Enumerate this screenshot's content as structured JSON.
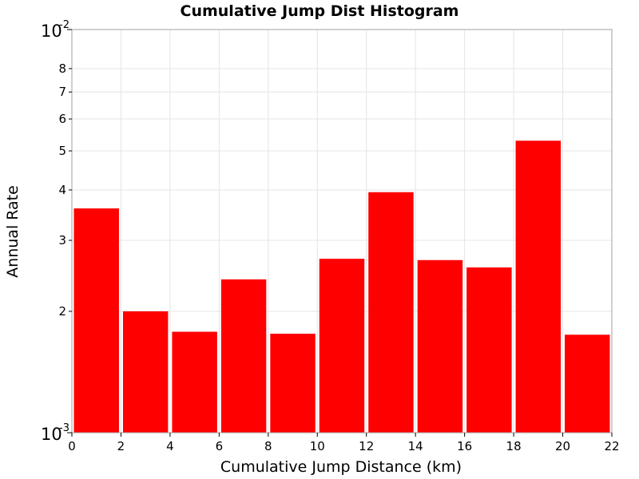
{
  "chart_data": {
    "type": "bar",
    "title": "Cumulative Jump Dist Histogram",
    "xlabel": "Cumulative Jump Distance (km)",
    "ylabel": "Annual Rate",
    "xlim": [
      0,
      22
    ],
    "ylim": [
      0.001,
      0.01
    ],
    "yscale": "log",
    "grid": true,
    "bar_color": "#ff0000",
    "bin_width": 2,
    "x_ticks": [
      0,
      2,
      4,
      6,
      8,
      10,
      12,
      14,
      16,
      18,
      20,
      22
    ],
    "y_major_ticks": [
      {
        "value": 0.001,
        "base": "10",
        "exp": "-3"
      },
      {
        "value": 0.01,
        "base": "10",
        "exp": "-2"
      }
    ],
    "y_minor_ticks": [
      {
        "value": 0.002,
        "label": "2"
      },
      {
        "value": 0.003,
        "label": "3"
      },
      {
        "value": 0.004,
        "label": "4"
      },
      {
        "value": 0.005,
        "label": "5"
      },
      {
        "value": 0.006,
        "label": "6"
      },
      {
        "value": 0.007,
        "label": "7"
      },
      {
        "value": 0.008,
        "label": "8"
      }
    ],
    "bins": [
      {
        "x": 1,
        "value": 0.0036
      },
      {
        "x": 3,
        "value": 0.002
      },
      {
        "x": 5,
        "value": 0.00178
      },
      {
        "x": 7,
        "value": 0.0024
      },
      {
        "x": 9,
        "value": 0.00176
      },
      {
        "x": 11,
        "value": 0.0027
      },
      {
        "x": 13,
        "value": 0.00395
      },
      {
        "x": 15,
        "value": 0.00268
      },
      {
        "x": 17,
        "value": 0.00257
      },
      {
        "x": 19,
        "value": 0.0053
      },
      {
        "x": 21,
        "value": 0.00175
      }
    ]
  }
}
